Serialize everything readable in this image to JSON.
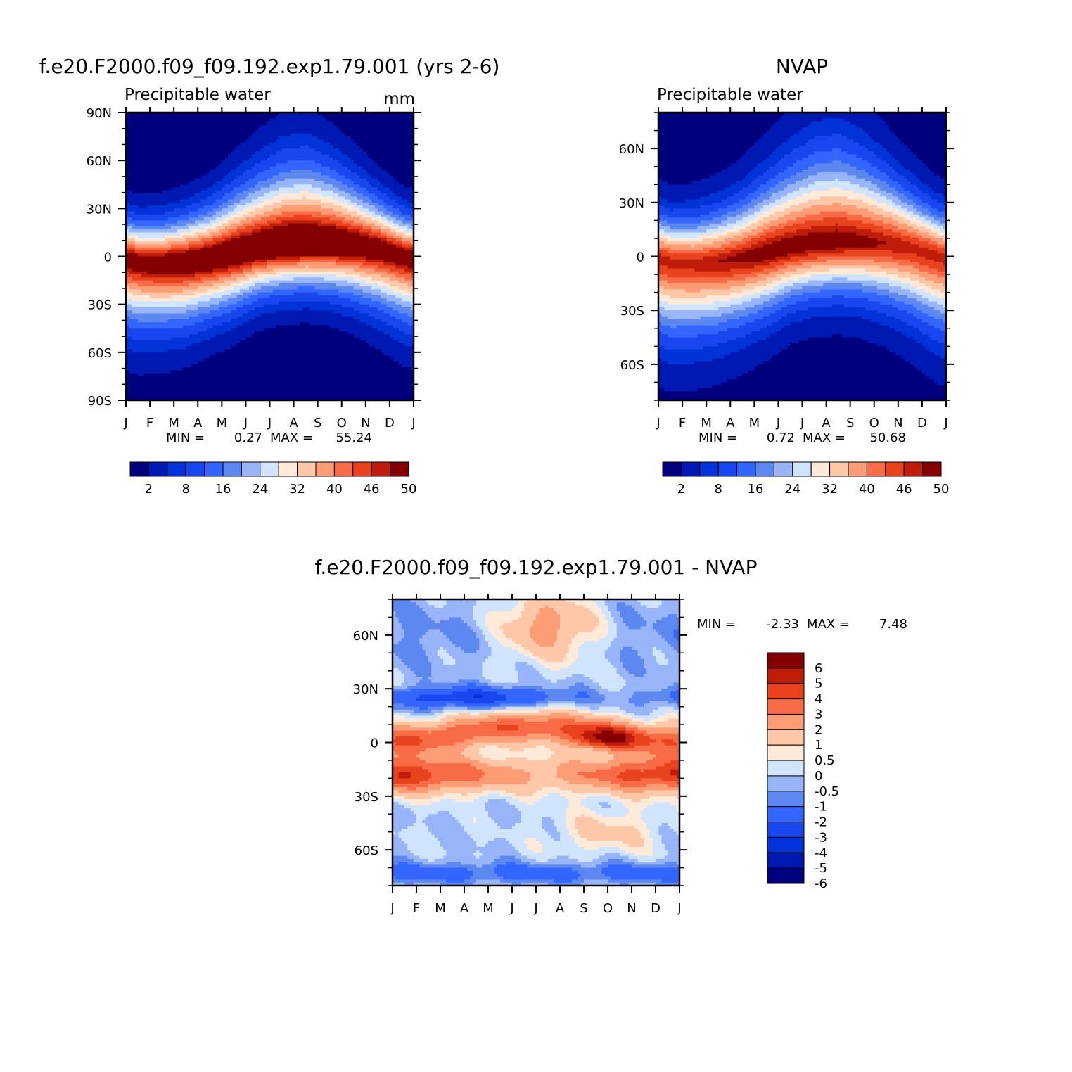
{
  "chart_data": [
    {
      "type": "heatmap",
      "title": "f.e20.F2000.f09_f09.192.exp1.79.001 (yrs 2-6)",
      "subtitle": "Precipitable water",
      "units": "mm",
      "x_ticks": [
        "J",
        "F",
        "M",
        "A",
        "M",
        "J",
        "J",
        "A",
        "S",
        "O",
        "N",
        "D",
        "J"
      ],
      "y_ticks": [
        "90N",
        "60N",
        "30N",
        "0",
        "30S",
        "60S",
        "90S"
      ],
      "y_tick_values": [
        90,
        60,
        30,
        0,
        -30,
        -60,
        -90
      ],
      "ylim": [
        -90,
        90
      ],
      "min_label": "MIN =",
      "min_value": "0.27",
      "max_label": "MAX =",
      "max_value": "55.24",
      "colorbar": {
        "orientation": "horizontal",
        "labels": [
          "2",
          "8",
          "16",
          "24",
          "32",
          "40",
          "46",
          "50"
        ],
        "colors": [
          "#00007f",
          "#0019b2",
          "#0033d8",
          "#1947ef",
          "#3366ff",
          "#5c88f0",
          "#99b5fa",
          "#d0e4fd",
          "#ffe9d9",
          "#fdc7a8",
          "#fc9d76",
          "#f76b47",
          "#e8431e",
          "#bf1d0a",
          "#850101"
        ]
      },
      "field": {
        "levels": [
          2,
          5,
          8,
          12,
          16,
          20,
          24,
          28,
          32,
          36,
          40,
          43,
          46,
          48,
          50
        ],
        "months": [
          0.5,
          1.5,
          2.5,
          3.5,
          4.5,
          5.5,
          6.5,
          7.5,
          8.5,
          9.5,
          10.5,
          11.5
        ],
        "itcz_lat": [
          -3,
          -4,
          -3,
          -1,
          2,
          5,
          7,
          8,
          8,
          7,
          5,
          1
        ],
        "peak": [
          51,
          52,
          53,
          53,
          54,
          54,
          55,
          55,
          54,
          53,
          52,
          51
        ],
        "nh_width": [
          20,
          21,
          23,
          26,
          31,
          36,
          40,
          41,
          37,
          31,
          25,
          21
        ],
        "sh_width": [
          34,
          33,
          32,
          30,
          28,
          25,
          24,
          24,
          25,
          27,
          30,
          33
        ],
        "floor": [
          0.5,
          0.5,
          0.4,
          0.3,
          0.3,
          0.3,
          0.3,
          0.3,
          0.3,
          0.4,
          0.5,
          0.5
        ]
      }
    },
    {
      "type": "heatmap",
      "title": "NVAP",
      "subtitle": "Precipitable water",
      "x_ticks": [
        "J",
        "F",
        "M",
        "A",
        "M",
        "J",
        "J",
        "A",
        "S",
        "O",
        "N",
        "D",
        "J"
      ],
      "y_ticks": [
        "60N",
        "30N",
        "0",
        "30S",
        "60S"
      ],
      "y_tick_values": [
        60,
        30,
        0,
        -30,
        -60
      ],
      "ylim": [
        -80,
        80
      ],
      "min_label": "MIN =",
      "min_value": "0.72",
      "max_label": "MAX =",
      "max_value": "50.68",
      "colorbar": {
        "orientation": "horizontal",
        "labels": [
          "2",
          "8",
          "16",
          "24",
          "32",
          "40",
          "46",
          "50"
        ],
        "colors": [
          "#00007f",
          "#0019b2",
          "#0033d8",
          "#1947ef",
          "#3366ff",
          "#5c88f0",
          "#99b5fa",
          "#d0e4fd",
          "#ffe9d9",
          "#fdc7a8",
          "#fc9d76",
          "#f76b47",
          "#e8431e",
          "#bf1d0a",
          "#850101"
        ]
      },
      "field": {
        "levels": [
          2,
          5,
          8,
          12,
          16,
          20,
          24,
          28,
          32,
          36,
          40,
          43,
          46,
          48,
          50
        ],
        "months": [
          0.5,
          1.5,
          2.5,
          3.5,
          4.5,
          5.5,
          6.5,
          7.5,
          8.5,
          9.5,
          10.5,
          11.5
        ],
        "itcz_lat": [
          -3,
          -4,
          -3,
          -1,
          2,
          5,
          7,
          8,
          8,
          7,
          5,
          1
        ],
        "peak": [
          47,
          47,
          48,
          49,
          50,
          50,
          50,
          50,
          49,
          48,
          47,
          47
        ],
        "nh_width": [
          20,
          21,
          23,
          26,
          31,
          36,
          40,
          41,
          37,
          31,
          25,
          21
        ],
        "sh_width": [
          34,
          33,
          32,
          30,
          28,
          25,
          24,
          24,
          25,
          27,
          30,
          33
        ],
        "floor": [
          0.8,
          0.8,
          0.8,
          0.8,
          0.8,
          0.8,
          0.8,
          0.8,
          0.8,
          0.8,
          0.8,
          0.8
        ]
      }
    },
    {
      "type": "heatmap",
      "title": "f.e20.F2000.f09_f09.192.exp1.79.001 - NVAP",
      "x_ticks": [
        "J",
        "F",
        "M",
        "A",
        "M",
        "J",
        "J",
        "A",
        "S",
        "O",
        "N",
        "D",
        "J"
      ],
      "y_ticks": [
        "60N",
        "30N",
        "0",
        "30S",
        "60S"
      ],
      "y_tick_values": [
        60,
        30,
        0,
        -30,
        -60
      ],
      "ylim": [
        -80,
        80
      ],
      "min_label": "MIN =",
      "min_value": "-2.33",
      "max_label": "MAX =",
      "max_value": "7.48",
      "colorbar": {
        "orientation": "vertical",
        "labels": [
          "6",
          "5",
          "4",
          "3",
          "2",
          "1",
          "0.5",
          "0",
          "-0.5",
          "-1",
          "-2",
          "-3",
          "-4",
          "-5",
          "-6"
        ],
        "colors": [
          "#850101",
          "#bf1d0a",
          "#e8431e",
          "#f76b47",
          "#fc9d76",
          "#fdc7a8",
          "#ffe9d9",
          "#d0e4fd",
          "#99b5fa",
          "#5c88f0",
          "#3366ff",
          "#1947ef",
          "#0033d8",
          "#0019b2",
          "#00007f"
        ]
      },
      "field": {
        "levels": [
          -6,
          -5,
          -4,
          -3,
          -2,
          -1,
          -0.5,
          0,
          0.5,
          1,
          2,
          3,
          4,
          5,
          6
        ]
      }
    }
  ]
}
